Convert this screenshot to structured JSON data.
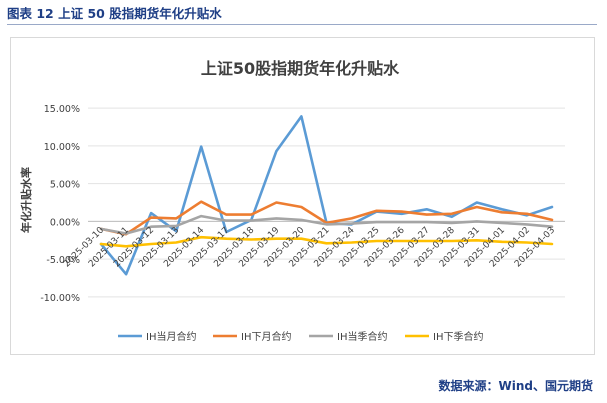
{
  "caption": "图表 12 上证 50 股指期货年化升贴水",
  "source": "数据来源：Wind、国元期货",
  "chart_data": {
    "type": "line",
    "title": "上证50股指期货年化升贴水",
    "xlabel": "",
    "ylabel": "年化升贴水率",
    "ylim": [
      -0.12,
      0.17
    ],
    "yticks": [
      -0.1,
      -0.05,
      0.0,
      0.05,
      0.1,
      0.15
    ],
    "ytick_labels": [
      "-10.00%",
      "-5.00%",
      "0.00%",
      "5.00%",
      "10.00%",
      "15.00%"
    ],
    "tick_dates": [
      "2025-03-10",
      "2025-03-11",
      "2025-03-12",
      "2025-03-13",
      "2025-03-14",
      "2025-03-17",
      "2025-03-18",
      "2025-03-19",
      "2025-03-20",
      "2025-03-21",
      "2025-03-24",
      "2025-03-25",
      "2025-03-26",
      "2025-03-27",
      "2025-03-28",
      "2025-03-31",
      "2025-04-01",
      "2025-04-02",
      "2025-04-03"
    ],
    "legend_position": "bottom",
    "series": [
      {
        "name": "IH当月合约",
        "color": "#5b9bd5",
        "x": [
          "2025-03-10",
          "2025-03-11",
          "2025-03-12",
          "2025-03-13",
          "2025-03-14",
          "2025-03-17",
          "2025-03-18",
          "2025-03-19",
          "2025-03-20",
          "2025-03-21",
          "2025-03-24",
          "2025-03-25",
          "2025-03-26",
          "2025-03-27",
          "2025-03-28",
          "2025-03-31",
          "2025-04-01",
          "2025-04-02",
          "2025-04-03"
        ],
        "values": [
          -0.03,
          -0.07,
          0.011,
          -0.013,
          0.099,
          -0.014,
          0.002,
          0.093,
          0.139,
          -0.002,
          -0.004,
          0.013,
          0.01,
          0.016,
          0.006,
          0.025,
          0.016,
          0.008,
          0.019
        ]
      },
      {
        "name": "IH下月合约",
        "color": "#ed7d31",
        "x": [
          "2025-03-10",
          "2025-03-11",
          "2025-03-12",
          "2025-03-13",
          "2025-03-14",
          "2025-03-17",
          "2025-03-18",
          "2025-03-19",
          "2025-03-20",
          "2025-03-21",
          "2025-03-24",
          "2025-03-25",
          "2025-03-26",
          "2025-03-27",
          "2025-03-28",
          "2025-03-31",
          "2025-04-01",
          "2025-04-02",
          "2025-04-03"
        ],
        "values": [
          -0.01,
          -0.017,
          0.005,
          0.004,
          0.026,
          0.009,
          0.009,
          0.025,
          0.019,
          -0.002,
          0.004,
          0.014,
          0.013,
          0.009,
          0.01,
          0.019,
          0.012,
          0.01,
          0.002
        ]
      },
      {
        "name": "IH当季合约",
        "color": "#a5a5a5",
        "x": [
          "2025-03-10",
          "2025-03-11",
          "2025-03-12",
          "2025-03-13",
          "2025-03-14",
          "2025-03-17",
          "2025-03-18",
          "2025-03-19",
          "2025-03-20",
          "2025-03-21",
          "2025-03-24",
          "2025-03-25",
          "2025-03-26",
          "2025-03-27",
          "2025-03-28",
          "2025-03-31",
          "2025-04-01",
          "2025-04-02",
          "2025-04-03"
        ],
        "values": [
          -0.01,
          -0.016,
          -0.007,
          -0.006,
          0.007,
          0.001,
          0.001,
          0.004,
          0.002,
          -0.004,
          -0.003,
          -0.001,
          -0.001,
          -0.001,
          -0.002,
          0.0,
          -0.002,
          -0.004,
          -0.007
        ]
      },
      {
        "name": "IH下季合约",
        "color": "#ffc000",
        "x": [
          "2025-03-10",
          "2025-03-11",
          "2025-03-12",
          "2025-03-13",
          "2025-03-14",
          "2025-03-17",
          "2025-03-18",
          "2025-03-19",
          "2025-03-20",
          "2025-03-21",
          "2025-03-24",
          "2025-03-25",
          "2025-03-26",
          "2025-03-27",
          "2025-03-28",
          "2025-03-31",
          "2025-04-01",
          "2025-04-02",
          "2025-04-03"
        ],
        "values": [
          -0.03,
          -0.033,
          -0.03,
          -0.028,
          -0.021,
          -0.023,
          -0.024,
          -0.023,
          -0.023,
          -0.029,
          -0.028,
          -0.026,
          -0.026,
          -0.026,
          -0.026,
          -0.025,
          -0.027,
          -0.028,
          -0.03
        ]
      }
    ]
  }
}
